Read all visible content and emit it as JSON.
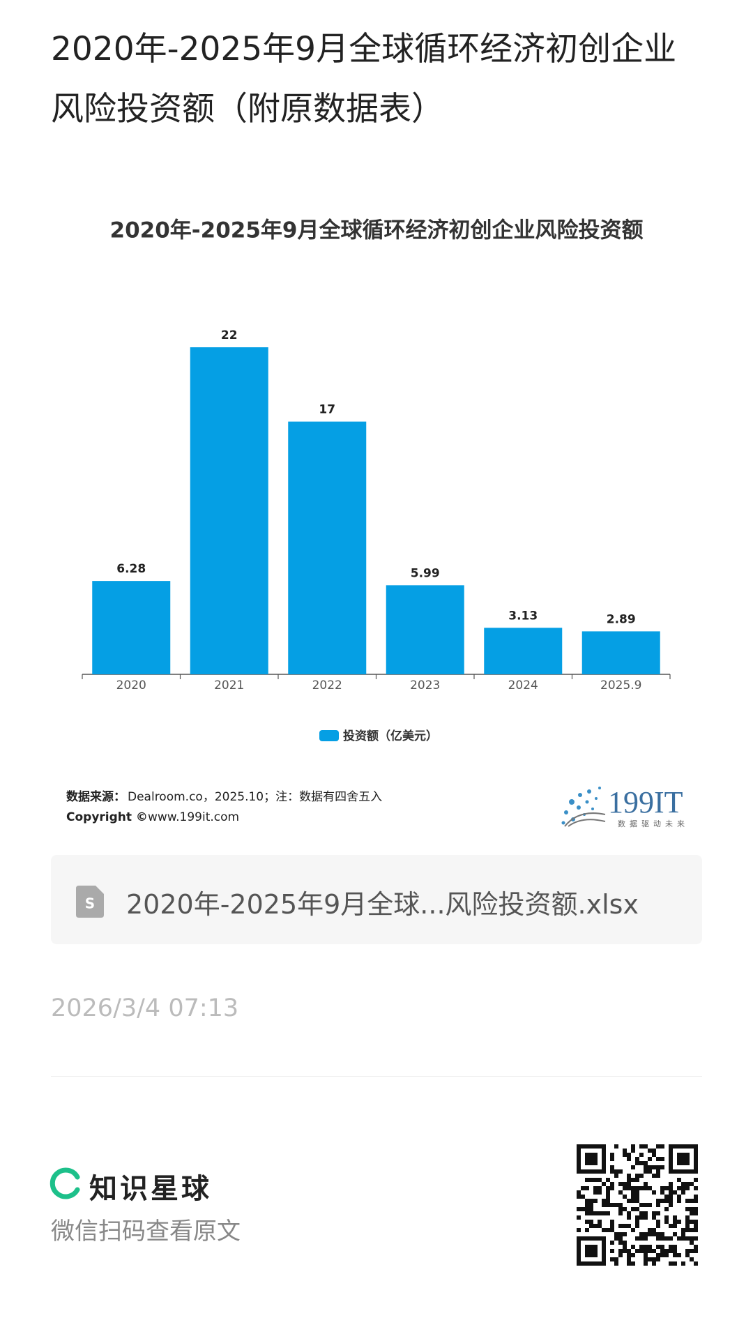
{
  "page_title": "2020年-2025年9月全球循环经济初创企业风险投资额（附原数据表）",
  "chart_data": {
    "type": "bar",
    "title": "2020年-2025年9月全球循环经济初创企业风险投资额",
    "categories": [
      "2020",
      "2021",
      "2022",
      "2023",
      "2024",
      "2025.9"
    ],
    "series": [
      {
        "name": "投资额（亿美元）",
        "color": "#059fe4",
        "values": [
          6.28,
          22,
          17,
          5.99,
          3.13,
          2.89
        ]
      }
    ],
    "legend": "bottom"
  },
  "source": {
    "label": "数据来源：",
    "text": "Dealroom.co，2025.10；注：数据有四舍五入",
    "copyright_label": "Copyright ©",
    "copyright_text": "www.199it.com"
  },
  "logo": {
    "name": "199IT",
    "slogan": "数据驱动未来"
  },
  "attachment": {
    "filename": "2020年-2025年9月全球...风险投资额.xlsx"
  },
  "date": "2026/3/4 07:13",
  "footer": {
    "brand": "知识星球",
    "hint": "微信扫码查看原文"
  }
}
